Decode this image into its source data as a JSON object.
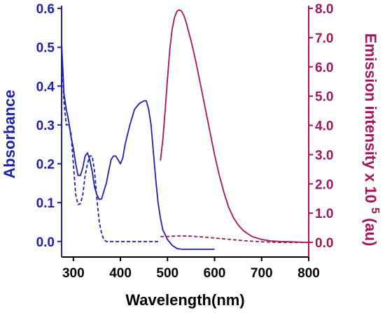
{
  "chart_data": {
    "type": "line",
    "xlabel": "Wavelength(nm)",
    "ylabel_left": "Absorbance",
    "ylabel_right": "Emission intensity x 10",
    "ylabel_right_exponent": "5",
    "ylabel_right_suffix": "(au)",
    "xlim": [
      275,
      800
    ],
    "ylim_left": [
      -0.04,
      0.6
    ],
    "ylim_right": [
      -0.5,
      8.0
    ],
    "x_ticks": [
      300,
      400,
      500,
      600,
      700,
      800
    ],
    "y_left_ticks": [
      "0.0",
      "0.1",
      "0.2",
      "0.3",
      "0.4",
      "0.5",
      "0.6"
    ],
    "y_right_ticks": [
      "0.0",
      "1.0",
      "2.0",
      "3.0",
      "4.0",
      "5.0",
      "6.0",
      "7.0",
      "8.0"
    ],
    "grid": false,
    "colors": {
      "absorbance": "#1f1fa8",
      "emission": "#a3145a",
      "axis": "#000000"
    },
    "series": [
      {
        "axis": "left",
        "style": "solid",
        "color": "#1f1fa8",
        "x": [
          275,
          280,
          285,
          290,
          295,
          300,
          305,
          310,
          315,
          320,
          325,
          330,
          335,
          340,
          345,
          350,
          355,
          360,
          365,
          370,
          375,
          380,
          385,
          390,
          395,
          400,
          405,
          410,
          420,
          430,
          440,
          450,
          455,
          460,
          465,
          470,
          475,
          480,
          485,
          490,
          500,
          510,
          520,
          530,
          550,
          575,
          600
        ],
        "y": [
          0.51,
          0.38,
          0.34,
          0.31,
          0.27,
          0.24,
          0.2,
          0.17,
          0.17,
          0.19,
          0.22,
          0.228,
          0.21,
          0.18,
          0.14,
          0.12,
          0.108,
          0.11,
          0.13,
          0.15,
          0.18,
          0.21,
          0.22,
          0.22,
          0.21,
          0.2,
          0.215,
          0.25,
          0.3,
          0.34,
          0.355,
          0.362,
          0.362,
          0.34,
          0.3,
          0.23,
          0.16,
          0.1,
          0.06,
          0.03,
          0.005,
          -0.01,
          -0.018,
          -0.02,
          -0.02,
          -0.02,
          -0.02
        ]
      },
      {
        "axis": "left",
        "style": "dashed",
        "color": "#1f1fa8",
        "x": [
          275,
          280,
          285,
          290,
          295,
          300,
          305,
          310,
          315,
          320,
          325,
          330,
          335,
          340,
          345,
          350,
          355,
          360,
          365,
          370,
          380,
          400,
          450,
          485
        ],
        "y": [
          0.49,
          0.36,
          0.3,
          0.3,
          0.28,
          0.2,
          0.12,
          0.095,
          0.097,
          0.12,
          0.17,
          0.2,
          0.22,
          0.22,
          0.18,
          0.11,
          0.05,
          0.02,
          0.005,
          0.0,
          0.0,
          0.0,
          0.0,
          0.0
        ]
      },
      {
        "axis": "right",
        "style": "solid",
        "color": "#a3145a",
        "x": [
          485,
          490,
          495,
          500,
          505,
          510,
          515,
          520,
          525,
          530,
          535,
          540,
          545,
          550,
          560,
          570,
          580,
          590,
          600,
          610,
          620,
          630,
          640,
          650,
          660,
          670,
          680,
          700,
          720,
          740,
          760,
          780,
          800
        ],
        "y": [
          2.8,
          3.5,
          4.5,
          5.6,
          6.6,
          7.3,
          7.7,
          7.9,
          7.95,
          7.9,
          7.75,
          7.5,
          7.2,
          6.9,
          6.2,
          5.4,
          4.6,
          3.8,
          3.0,
          2.3,
          1.7,
          1.2,
          0.85,
          0.6,
          0.42,
          0.3,
          0.2,
          0.1,
          0.05,
          0.03,
          0.02,
          0.01,
          0.0
        ]
      },
      {
        "axis": "right",
        "style": "dashed",
        "color": "#a3145a",
        "x": [
          485,
          500,
          520,
          540,
          560,
          580,
          600,
          620,
          640,
          660,
          680,
          700,
          740,
          800
        ],
        "y": [
          0.2,
          0.2,
          0.22,
          0.22,
          0.2,
          0.18,
          0.15,
          0.12,
          0.09,
          0.06,
          0.04,
          0.02,
          0.0,
          0.0
        ]
      }
    ]
  }
}
